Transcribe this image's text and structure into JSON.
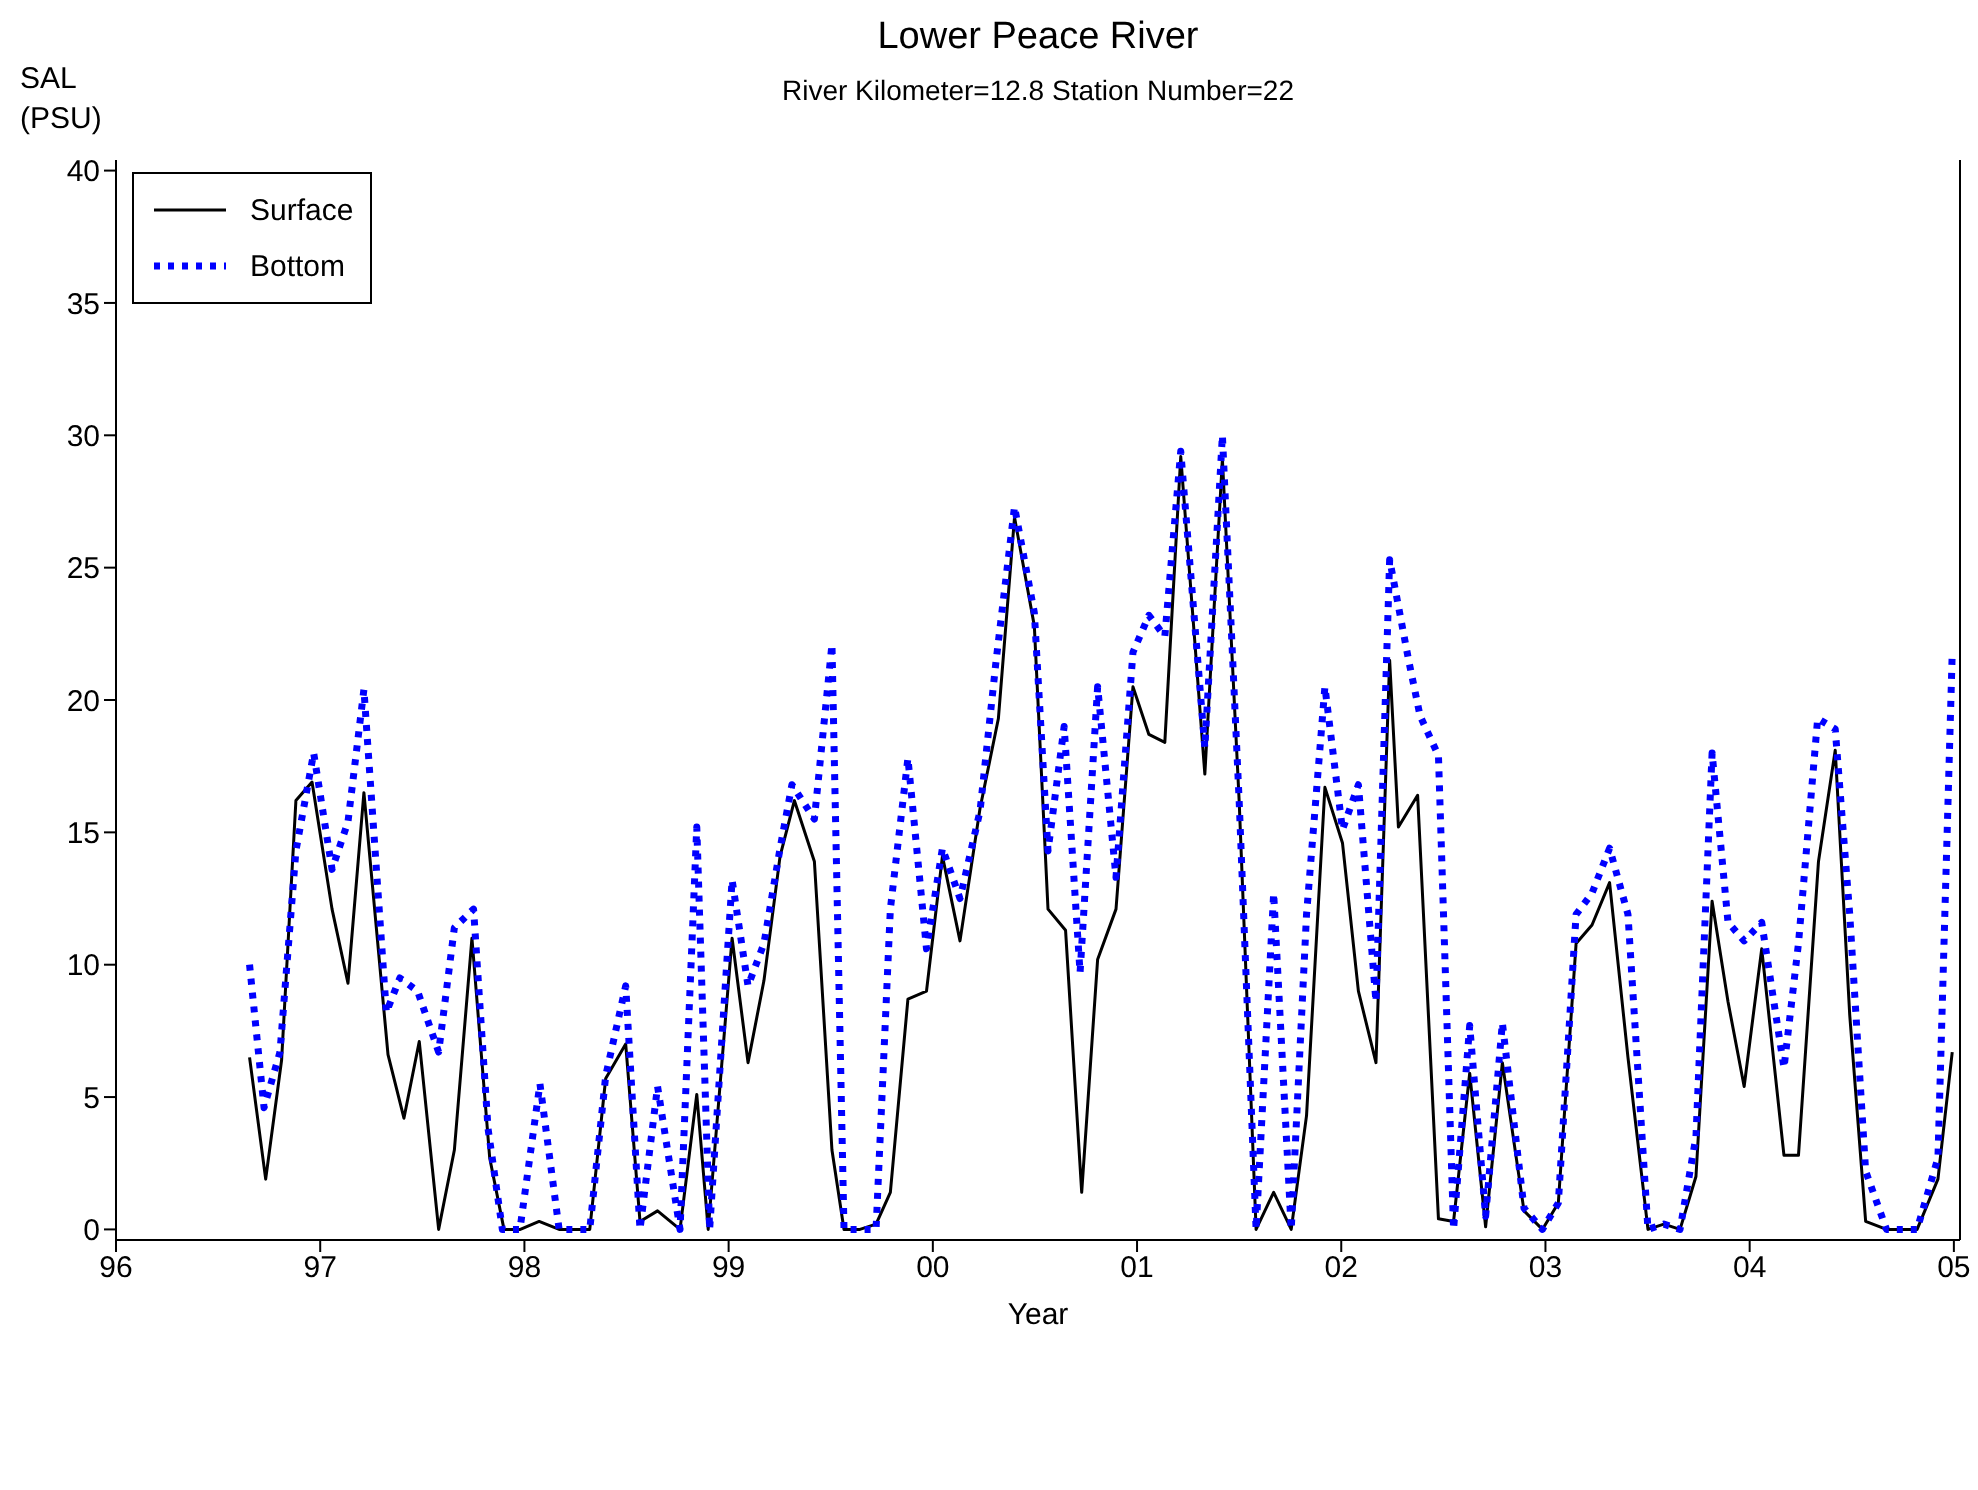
{
  "chart_data": {
    "type": "line",
    "title": "Lower Peace River",
    "subtitle": "River Kilometer=12.8 Station Number=22",
    "xlabel": "Year",
    "ylabel": "SAL\n(PSU)",
    "xlim": [
      1996,
      2005.03
    ],
    "xticks": [
      {
        "value": 1996,
        "label": "96"
      },
      {
        "value": 1997,
        "label": "97"
      },
      {
        "value": 1998,
        "label": "98"
      },
      {
        "value": 1999,
        "label": "99"
      },
      {
        "value": 2000,
        "label": "00"
      },
      {
        "value": 2001,
        "label": "01"
      },
      {
        "value": 2002,
        "label": "02"
      },
      {
        "value": 2003,
        "label": "03"
      },
      {
        "value": 2004,
        "label": "04"
      },
      {
        "value": 2005,
        "label": "05"
      }
    ],
    "ylim": [
      -0.4,
      40.4
    ],
    "yticks": [
      0,
      5,
      10,
      15,
      20,
      25,
      30,
      35,
      40
    ],
    "legend": "top left",
    "marker": "none",
    "series": [
      {
        "name": "Surface",
        "color": "#000000",
        "line_style": "solid",
        "x": [
          1996.654,
          1996.733,
          1996.811,
          1996.881,
          1996.96,
          1997.058,
          1997.136,
          1997.214,
          1997.332,
          1997.41,
          1997.485,
          1997.58,
          1997.657,
          1997.743,
          1997.83,
          1997.9,
          1997.98,
          1998.072,
          1998.17,
          1998.32,
          1998.398,
          1998.496,
          1998.566,
          1998.652,
          1998.762,
          1998.844,
          1998.9,
          1999.017,
          1999.095,
          1999.173,
          1999.252,
          1999.322,
          1999.42,
          1999.506,
          1999.565,
          1999.643,
          1999.722,
          1999.792,
          1999.878,
          1999.969,
          2000.047,
          2000.133,
          2000.231,
          2000.321,
          2000.4,
          2000.497,
          2000.564,
          2000.65,
          2000.729,
          2000.807,
          2000.897,
          2000.98,
          2001.058,
          2001.136,
          2001.214,
          2001.332,
          2001.418,
          2001.5,
          2001.583,
          2001.669,
          2001.755,
          2001.83,
          2001.92,
          2002.006,
          2002.084,
          2002.17,
          2002.237,
          2002.28,
          2002.374,
          2002.476,
          2002.55,
          2002.629,
          2002.707,
          2002.789,
          2002.895,
          2002.985,
          2003.063,
          2003.15,
          2003.228,
          2003.314,
          2003.404,
          2003.502,
          2003.58,
          2003.659,
          2003.737,
          2003.816,
          2003.894,
          2003.973,
          2004.059,
          2004.168,
          2004.239,
          2004.337,
          2004.419,
          2004.49,
          2004.568,
          2004.67,
          2004.82,
          2004.922,
          2004.992
        ],
        "values": [
          6.5,
          1.9,
          6.4,
          16.2,
          16.9,
          12.1,
          9.3,
          16.5,
          6.6,
          4.2,
          7.1,
          0,
          3.0,
          11.0,
          2.7,
          0,
          0,
          0.3,
          0,
          0,
          5.7,
          7.0,
          0.3,
          0.7,
          0,
          5.1,
          0,
          11.0,
          6.3,
          9.4,
          14.1,
          16.2,
          13.9,
          3.0,
          0,
          0,
          0.2,
          1.4,
          8.7,
          9.0,
          14.1,
          10.9,
          15.9,
          19.3,
          26.9,
          22.8,
          12.1,
          11.3,
          1.4,
          10.2,
          12.1,
          20.5,
          18.7,
          18.4,
          29.2,
          17.2,
          29.1,
          16.2,
          0,
          1.4,
          0,
          4.3,
          16.7,
          14.6,
          9.0,
          6.3,
          21.5,
          15.2,
          16.4,
          0.4,
          0.3,
          5.9,
          0.1,
          6.3,
          0.7,
          0,
          1.0,
          10.8,
          11.5,
          13.1,
          6.5,
          0,
          0.2,
          0,
          2.0,
          12.4,
          8.6,
          5.4,
          10.6,
          2.8,
          2.8,
          13.9,
          18.1,
          8.1,
          0.3,
          0,
          0,
          1.9,
          6.7
        ]
      },
      {
        "name": "Bottom",
        "color": "#0000ff",
        "line_style": "dotted",
        "x": [
          1996.654,
          1996.725,
          1996.803,
          1996.881,
          1996.968,
          1997.058,
          1997.136,
          1997.214,
          1997.324,
          1997.39,
          1997.477,
          1997.58,
          1997.657,
          1997.751,
          1997.822,
          1997.892,
          1997.978,
          1998.076,
          1998.17,
          1998.32,
          1998.398,
          1998.496,
          1998.566,
          1998.652,
          1998.762,
          1998.844,
          1998.907,
          1999.017,
          1999.095,
          1999.173,
          1999.252,
          1999.31,
          1999.42,
          1999.506,
          1999.565,
          1999.643,
          1999.722,
          1999.792,
          1999.878,
          1999.969,
          2000.047,
          2000.133,
          2000.231,
          2000.31,
          2000.4,
          2000.497,
          2000.564,
          2000.643,
          2000.721,
          2000.807,
          2000.897,
          2000.98,
          2001.058,
          2001.136,
          2001.214,
          2001.332,
          2001.418,
          2001.5,
          2001.583,
          2001.669,
          2001.755,
          2001.83,
          2001.92,
          2002.006,
          2002.084,
          2002.17,
          2002.237,
          2002.33,
          2002.386,
          2002.476,
          2002.55,
          2002.629,
          2002.707,
          2002.789,
          2002.895,
          2002.985,
          2003.063,
          2003.15,
          2003.228,
          2003.314,
          2003.404,
          2003.502,
          2003.58,
          2003.659,
          2003.737,
          2003.816,
          2003.894,
          2003.973,
          2004.059,
          2004.168,
          2004.239,
          2004.333,
          2004.419,
          2004.49,
          2004.568,
          2004.67,
          2004.82,
          2004.922,
          2004.992
        ],
        "values": [
          10.0,
          4.6,
          6.7,
          14.3,
          18.0,
          13.6,
          15.4,
          20.4,
          8.2,
          9.5,
          9.0,
          6.7,
          11.4,
          12.1,
          3.8,
          0,
          0,
          5.5,
          0,
          0,
          5.8,
          9.2,
          0,
          5.4,
          0,
          15.2,
          0,
          13.2,
          9.2,
          10.8,
          14.4,
          16.8,
          15.5,
          22.1,
          0,
          0,
          0,
          12.1,
          17.8,
          10.6,
          14.4,
          12.5,
          15.8,
          21.5,
          27.3,
          23.3,
          14.3,
          19.0,
          9.7,
          20.5,
          13.3,
          21.8,
          23.2,
          22.4,
          29.4,
          18.2,
          30.0,
          16.2,
          0,
          12.7,
          0,
          11.9,
          20.5,
          15.1,
          16.8,
          8.6,
          25.3,
          21.5,
          19.4,
          17.9,
          0,
          7.7,
          0.5,
          7.8,
          0.8,
          0,
          1.0,
          11.9,
          12.7,
          14.4,
          11.9,
          0,
          0.2,
          0,
          3.5,
          18.0,
          11.6,
          10.9,
          11.6,
          6.1,
          10.8,
          19.3,
          18.9,
          11.9,
          2.2,
          0,
          0,
          2.7,
          21.8
        ]
      }
    ]
  }
}
